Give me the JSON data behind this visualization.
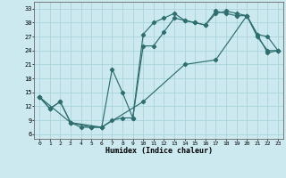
{
  "xlabel": "Humidex (Indice chaleur)",
  "bg_color": "#cce9f0",
  "line_color": "#2d6e6e",
  "grid_color": "#aad4de",
  "xlim": [
    -0.5,
    23.5
  ],
  "ylim": [
    5.0,
    34.5
  ],
  "xticks": [
    0,
    1,
    2,
    3,
    4,
    5,
    6,
    7,
    8,
    9,
    10,
    11,
    12,
    13,
    14,
    15,
    16,
    17,
    18,
    19,
    20,
    21,
    22,
    23
  ],
  "yticks": [
    6,
    9,
    12,
    15,
    18,
    21,
    24,
    27,
    30,
    33
  ],
  "line1_x": [
    0,
    1,
    2,
    3,
    4,
    5,
    6,
    7,
    8,
    9,
    10,
    11,
    12,
    13,
    14,
    15,
    16,
    17,
    18,
    19,
    20,
    21,
    22,
    23
  ],
  "line1_y": [
    14,
    11.5,
    13,
    8.5,
    7.5,
    7.5,
    7.5,
    20,
    15,
    9.5,
    27.5,
    30,
    31,
    32,
    30.5,
    30,
    29.5,
    32,
    32.5,
    32,
    31.5,
    27,
    24,
    24
  ],
  "line2_x": [
    0,
    1,
    2,
    3,
    5,
    6,
    7,
    8,
    9,
    10,
    11,
    12,
    13,
    14,
    15,
    16,
    17,
    18,
    19,
    20,
    21,
    22,
    23
  ],
  "line2_y": [
    14,
    11.5,
    13,
    8.5,
    7.5,
    7.5,
    9,
    9.5,
    9.5,
    25,
    25,
    28,
    31,
    30.5,
    30,
    29.5,
    32.5,
    32,
    31.5,
    31.5,
    27.5,
    27,
    24
  ],
  "line3_x": [
    0,
    3,
    6,
    10,
    14,
    17,
    20,
    22,
    23
  ],
  "line3_y": [
    14,
    8.5,
    7.5,
    13,
    21,
    22,
    31.5,
    23.5,
    24
  ]
}
